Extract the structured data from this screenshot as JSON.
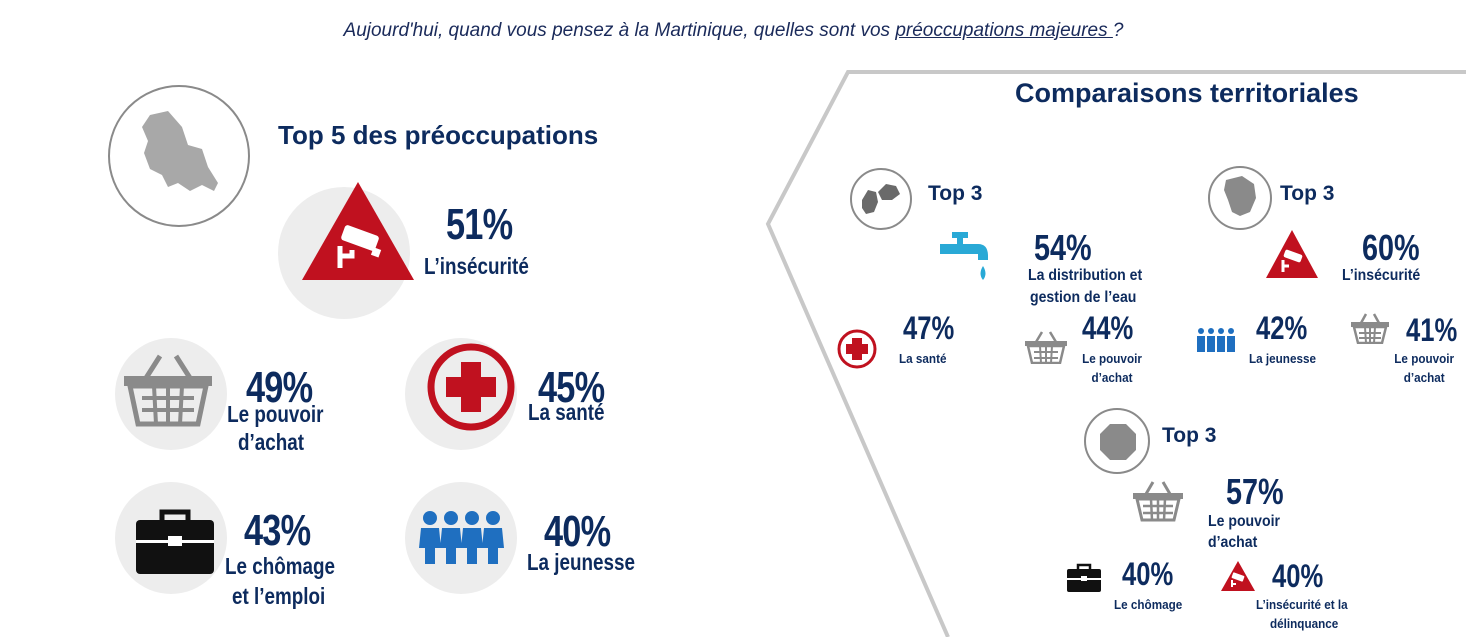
{
  "header": {
    "question_prefix": "Aujourd'hui, quand vous pensez à la Martinique, quelles sont vos ",
    "question_underlined": "préoccupations majeures ",
    "question_suffix": "?"
  },
  "left": {
    "title": "Top 5 des préoccupations",
    "items": [
      {
        "pct": "51%",
        "label": "L’insécurité",
        "icon": "security-camera-warning-icon",
        "color": "#c0111f"
      },
      {
        "pct": "49%",
        "label_line1": "Le pouvoir",
        "label_line2": "d’achat",
        "icon": "shopping-basket-icon"
      },
      {
        "pct": "45%",
        "label": "La santé",
        "icon": "medical-cross-icon",
        "color": "#c0111f"
      },
      {
        "pct": "43%",
        "label_line1": "Le chômage",
        "label_line2": "et l’emploi",
        "icon": "briefcase-icon"
      },
      {
        "pct": "40%",
        "label": "La jeunesse",
        "icon": "people-group-icon",
        "color": "#1f6fc0"
      }
    ]
  },
  "right": {
    "title": "Comparaisons territoriales",
    "territories": [
      {
        "top_label": "Top 3",
        "map_icon": "guadeloupe-map-icon",
        "items": [
          {
            "pct": "54%",
            "label_line1": "La distribution et",
            "label_line2": "gestion de l’eau",
            "icon": "water-tap-icon"
          },
          {
            "pct": "47%",
            "label": "La santé",
            "icon": "medical-cross-icon"
          },
          {
            "pct": "44%",
            "label_line1": "Le pouvoir",
            "label_line2": "d’achat",
            "icon": "shopping-basket-icon"
          }
        ]
      },
      {
        "top_label": "Top 3",
        "map_icon": "guyane-map-icon",
        "items": [
          {
            "pct": "60%",
            "label": "L’insécurité",
            "icon": "security-camera-warning-icon"
          },
          {
            "pct": "42%",
            "label": "La jeunesse",
            "icon": "people-group-icon"
          },
          {
            "pct": "41%",
            "label_line1": "Le pouvoir",
            "label_line2": "d’achat",
            "icon": "shopping-basket-icon"
          }
        ]
      },
      {
        "top_label": "Top 3",
        "map_icon": "reunion-map-icon",
        "items": [
          {
            "pct": "57%",
            "label_line1": "Le pouvoir",
            "label_line2": "d’achat",
            "icon": "shopping-basket-icon"
          },
          {
            "pct": "40%",
            "label": "Le chômage",
            "icon": "briefcase-icon"
          },
          {
            "pct": "40%",
            "label_line1": "L’insécurité et la",
            "label_line2": "délinquance",
            "icon": "security-camera-warning-icon"
          }
        ]
      }
    ]
  },
  "colors": {
    "navy": "#0d2b5e",
    "red": "#c0111f",
    "blue": "#1f6fc0",
    "cyan": "#29a9d6",
    "gray": "#8a8a8a"
  }
}
